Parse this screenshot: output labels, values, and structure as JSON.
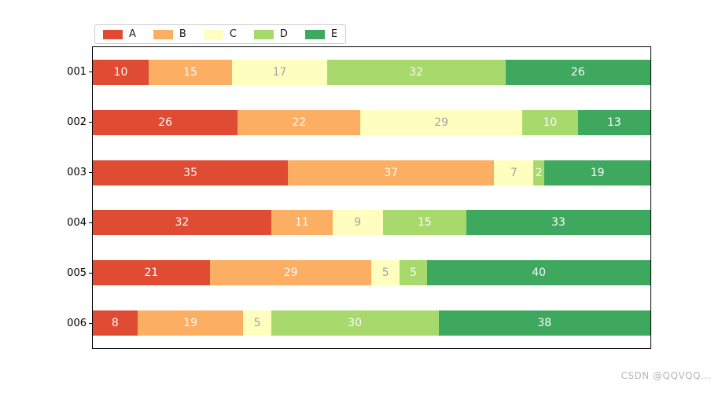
{
  "watermark": "CSDN @QQVQQ...",
  "chart_data": {
    "type": "bar",
    "orientation": "horizontal",
    "stacked": true,
    "title": "",
    "xlabel": "",
    "ylabel": "",
    "xlim": [
      0,
      100
    ],
    "grid": false,
    "legend": {
      "position": "top-left",
      "labels": [
        "A",
        "B",
        "C",
        "D",
        "E"
      ]
    },
    "categories": [
      "001",
      "002",
      "003",
      "004",
      "005",
      "006"
    ],
    "series": [
      {
        "name": "A",
        "color": "#e04b33",
        "label_color": "#fafafa",
        "values": [
          10,
          26,
          35,
          32,
          21,
          8
        ]
      },
      {
        "name": "B",
        "color": "#fcae62",
        "label_color": "#fafafa",
        "values": [
          15,
          22,
          37,
          11,
          29,
          19
        ]
      },
      {
        "name": "C",
        "color": "#feffbe",
        "label_color": "#a3a3a3",
        "values": [
          17,
          29,
          7,
          9,
          5,
          5
        ]
      },
      {
        "name": "D",
        "color": "#a8d96d",
        "label_color": "#fafafa",
        "values": [
          32,
          10,
          2,
          15,
          5,
          30
        ]
      },
      {
        "name": "E",
        "color": "#3ea85e",
        "label_color": "#fafafa",
        "values": [
          26,
          13,
          19,
          33,
          40,
          38
        ]
      }
    ]
  }
}
